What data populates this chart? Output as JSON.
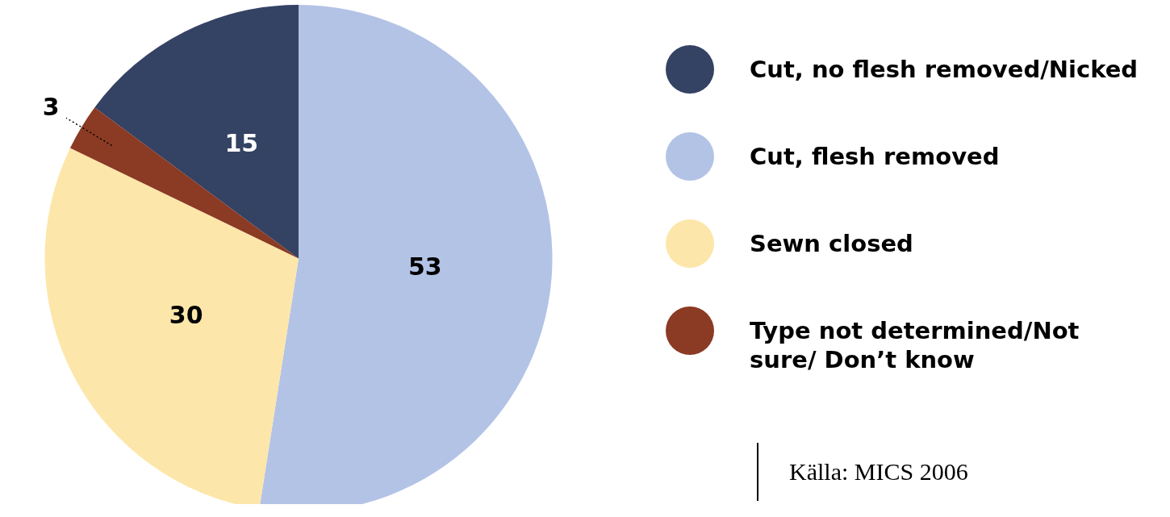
{
  "chart_data": {
    "type": "pie",
    "categories": [
      "Cut, no flesh removed/Nicked",
      "Cut, flesh removed",
      "Sewn closed",
      "Type not determined/Not sure/ Don’t know"
    ],
    "values": [
      15,
      53,
      30,
      3
    ],
    "colors": [
      "#344263",
      "#b3c3e6",
      "#fde6aa",
      "#8b3a24"
    ],
    "data_labels": true,
    "legend": "right",
    "annotations": [
      "Källa: MICS 2006"
    ]
  }
}
